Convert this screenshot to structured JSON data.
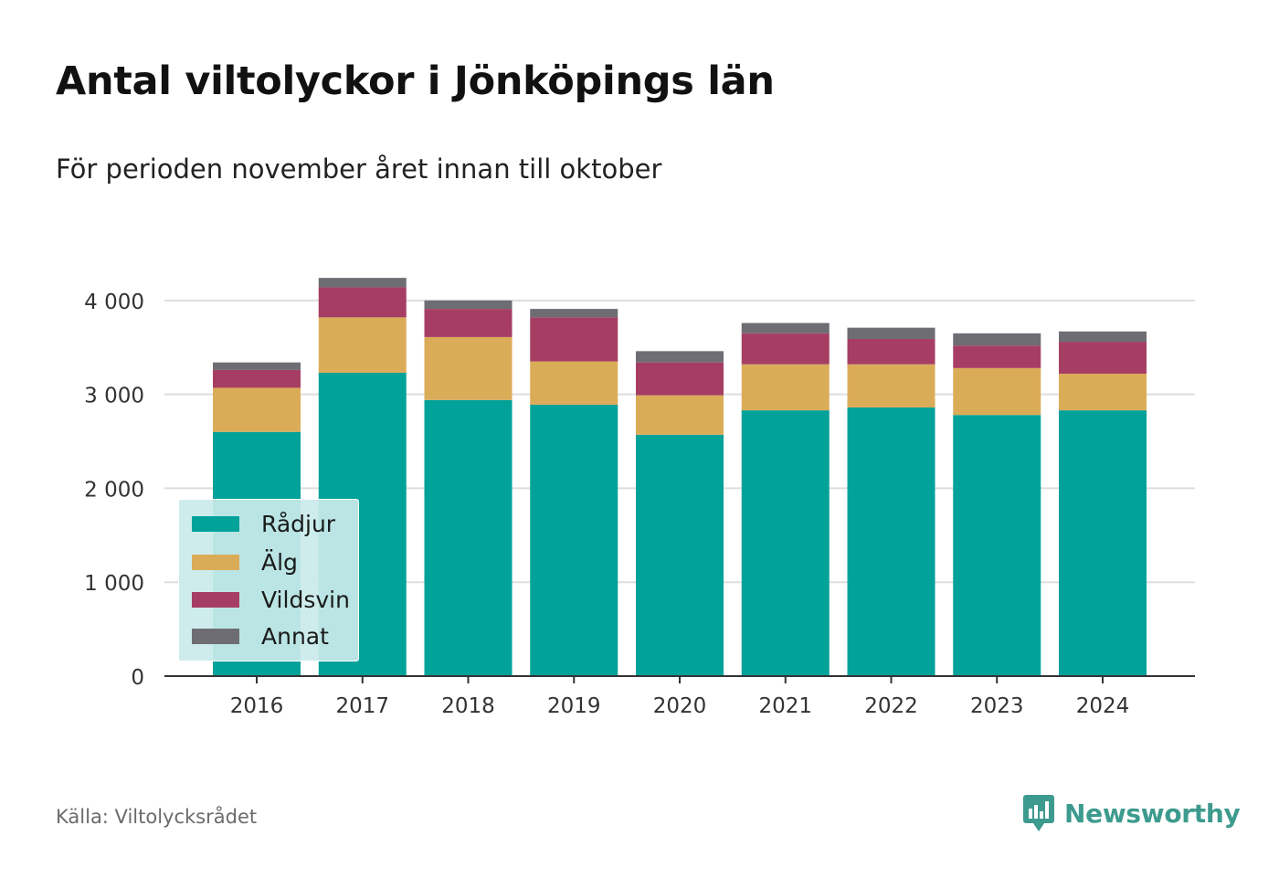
{
  "title": "Antal viltolyckor i Jönköpings län",
  "subtitle": "För perioden november året innan till oktober",
  "source": "Källa: Viltolycksrådet",
  "logo": {
    "text": "Newsworthy",
    "icon": "bar-chart-speech-bubble-icon",
    "color": "#3d9a8e"
  },
  "chart_data": {
    "type": "bar",
    "stacked": true,
    "categories": [
      "2016",
      "2017",
      "2018",
      "2019",
      "2020",
      "2021",
      "2022",
      "2023",
      "2024"
    ],
    "series": [
      {
        "name": "Rådjur",
        "color": "#00a29a",
        "values": [
          2600,
          3230,
          2940,
          2890,
          2570,
          2830,
          2860,
          2780,
          2830
        ]
      },
      {
        "name": "Älg",
        "color": "#dbac58",
        "values": [
          470,
          590,
          670,
          460,
          420,
          490,
          460,
          500,
          390
        ]
      },
      {
        "name": "Vildsvin",
        "color": "#a63e64",
        "values": [
          190,
          320,
          300,
          470,
          350,
          330,
          270,
          240,
          340
        ]
      },
      {
        "name": "Annat",
        "color": "#6e6d73",
        "values": [
          80,
          100,
          90,
          90,
          120,
          110,
          120,
          130,
          110
        ]
      }
    ],
    "ylim": [
      0,
      4300
    ],
    "yticks": [
      0,
      1000,
      2000,
      3000,
      4000
    ],
    "ytick_labels": [
      "0",
      "1 000",
      "2 000",
      "3 000",
      "4 000"
    ],
    "xlabel": "",
    "ylabel": "",
    "grid": true,
    "legend_position": "bottom-left"
  }
}
